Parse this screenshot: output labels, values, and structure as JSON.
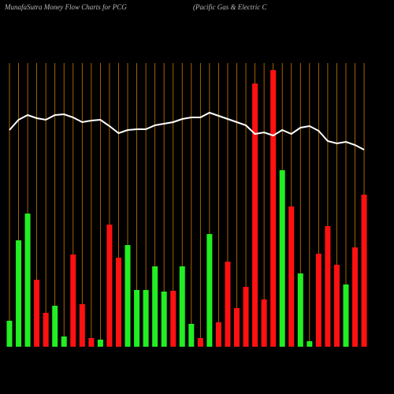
{
  "chart_data": {
    "type": "bar",
    "title": "MunafaSutra  Money Flow  Charts for PCG",
    "subtitle": "(Pacific Gas & Electric C",
    "categories": [
      null,
      null,
      null,
      null,
      null,
      null,
      null,
      null,
      null,
      null,
      null,
      null,
      null,
      null,
      null,
      null,
      null,
      null,
      null,
      null,
      null,
      null,
      null,
      null,
      null,
      null,
      null,
      null,
      null,
      null,
      null,
      null,
      null,
      null,
      null,
      null,
      null,
      null,
      null,
      null
    ],
    "values": [
      33,
      135,
      169,
      85,
      43,
      52,
      13,
      117,
      54,
      11,
      9,
      155,
      113,
      129,
      72,
      72,
      102,
      70,
      71,
      102,
      29,
      11,
      143,
      31,
      108,
      49,
      76,
      334,
      60,
      351,
      224,
      178,
      93,
      7,
      118,
      153,
      104,
      79,
      126,
      193
    ],
    "colors": [
      "#22ee22",
      "#22ee22",
      "#22ee22",
      "#ff1111",
      "#ff1111",
      "#22ee22",
      "#22ee22",
      "#ff1111",
      "#ff1111",
      "#ff1111",
      "#22ee22",
      "#ff1111",
      "#ff1111",
      "#22ee22",
      "#22ee22",
      "#22ee22",
      "#22ee22",
      "#22ee22",
      "#ff1111",
      "#22ee22",
      "#22ee22",
      "#ff1111",
      "#22ee22",
      "#ff1111",
      "#ff1111",
      "#ff1111",
      "#ff1111",
      "#ff1111",
      "#ff1111",
      "#ff1111",
      "#22ee22",
      "#ff1111",
      "#22ee22",
      "#22ee22",
      "#ff1111",
      "#ff1111",
      "#ff1111",
      "#22ee22",
      "#ff1111",
      "#ff1111"
    ],
    "line": [
      275,
      288,
      294,
      290,
      288,
      294,
      295,
      291,
      285,
      287,
      288,
      280,
      271,
      275,
      276,
      276,
      281,
      283,
      285,
      289,
      291,
      291,
      297,
      293,
      289,
      285,
      281,
      270,
      272,
      268,
      275,
      270,
      278,
      280,
      274,
      261,
      258,
      260,
      256,
      250
    ],
    "line_color": "#ffffff",
    "grid_color": "#cc7a00",
    "ylim": [
      0,
      360
    ]
  }
}
